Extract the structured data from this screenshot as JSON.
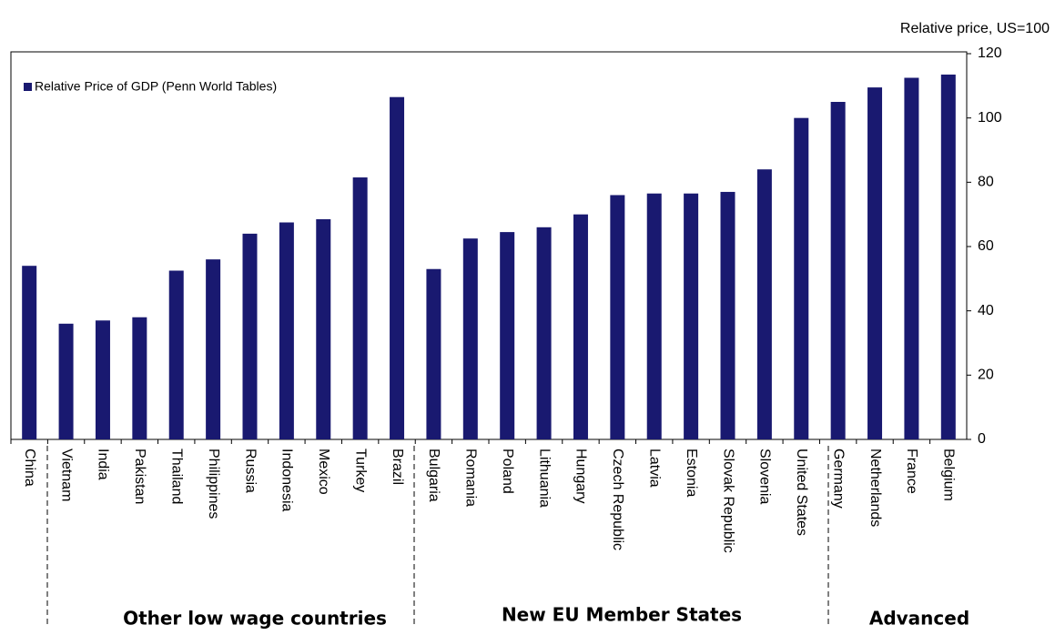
{
  "chart_data": {
    "type": "bar",
    "axis_label": "Relative price, US=100",
    "legend": "Relative Price of GDP (Penn World Tables)",
    "color": "#191970",
    "categories": [
      "China",
      "Vietnam",
      "India",
      "Pakistan",
      "Thailand",
      "Philippines",
      "Russia",
      "Indonesia",
      "Mexico",
      "Turkey",
      "Brazil",
      "Bulgaria",
      "Romania",
      "Poland",
      "Lithuania",
      "Hungary",
      "Czech Republic",
      "Latvia",
      "Estonia",
      "Slovak Republic",
      "Slovenia",
      "United States",
      "Germany",
      "Netherlands",
      "France",
      "Belgium"
    ],
    "values": [
      54,
      36,
      37,
      38,
      52.5,
      56,
      64,
      67.5,
      68.5,
      81.5,
      106.5,
      53,
      62.5,
      64.5,
      66,
      70,
      76,
      76.5,
      76.5,
      77,
      84,
      100,
      105,
      109.5,
      112.5,
      113.5
    ],
    "groups": [
      "Other low wage countries",
      "New EU Member States",
      "Advanced"
    ],
    "ylim": [
      0,
      120
    ],
    "yticks": [
      0,
      20,
      40,
      60,
      80,
      100,
      120
    ]
  }
}
